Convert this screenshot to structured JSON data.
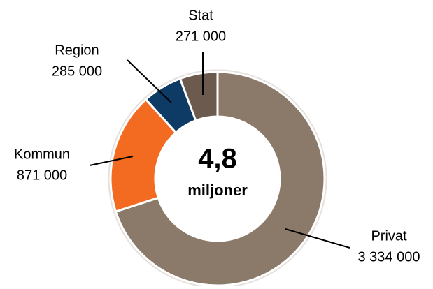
{
  "chart_data": {
    "type": "pie",
    "donut": true,
    "categories": [
      "Privat",
      "Kommun",
      "Region",
      "Stat"
    ],
    "values": [
      3334000,
      871000,
      285000,
      271000
    ],
    "value_labels": [
      "3 334 000",
      "871 000",
      "285 000",
      "271 000"
    ],
    "colors": [
      "#8b7a6a",
      "#f26b21",
      "#0d3b66",
      "#6b5a4d"
    ],
    "center_value": "4,8",
    "center_unit": "miljoner"
  }
}
